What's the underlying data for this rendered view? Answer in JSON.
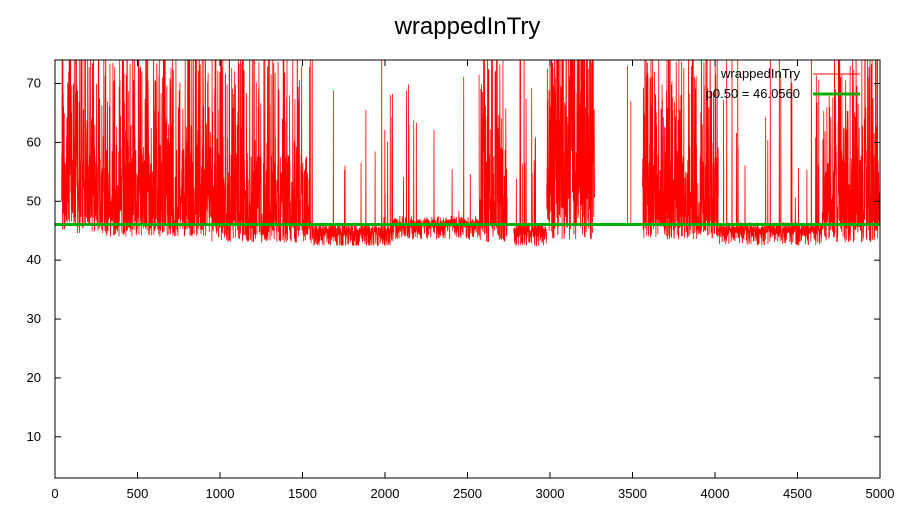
{
  "chart_data": {
    "type": "line",
    "title": "wrappedInTry",
    "xlabel": "",
    "ylabel": "",
    "xlim": [
      0,
      5000
    ],
    "ylim": [
      3,
      74
    ],
    "x_ticks": [
      0,
      500,
      1000,
      1500,
      2000,
      2500,
      3000,
      3500,
      4000,
      4500,
      5000
    ],
    "y_ticks": [
      10,
      20,
      30,
      40,
      50,
      60,
      70
    ],
    "grid": false,
    "legend_position": "top-right",
    "series": [
      {
        "name": "wrappedInTry",
        "color": "#ff0000",
        "n_points": 5000,
        "segments": [
          {
            "x_range": [
              40,
              300
            ],
            "baseline": 46.5,
            "band_top": 58,
            "spike_prob": 0.3
          },
          {
            "x_range": [
              300,
              950
            ],
            "baseline": 46.0,
            "band_top": 60,
            "spike_prob": 0.2
          },
          {
            "x_range": [
              950,
              1550
            ],
            "baseline": 45.0,
            "band_top": 58,
            "spike_prob": 0.15
          },
          {
            "x_range": [
              1550,
              2050
            ],
            "baseline": 44.0,
            "band_top": 46,
            "spike_prob": 0.03
          },
          {
            "x_range": [
              2050,
              2570
            ],
            "baseline": 45.5,
            "band_top": 47,
            "spike_prob": 0.02
          },
          {
            "x_range": [
              2570,
              2740
            ],
            "baseline": 45.0,
            "band_top": 59,
            "spike_prob": 0.25
          },
          {
            "x_range": [
              2780,
              2980
            ],
            "baseline": 44.0,
            "band_top": 46,
            "spike_prob": 0.05
          },
          {
            "x_range": [
              2980,
              3270
            ],
            "baseline": 45.5,
            "band_top": 59,
            "spike_prob": 0.4
          },
          {
            "x_range": [
              3560,
              4020
            ],
            "baseline": 45.5,
            "band_top": 60,
            "spike_prob": 0.2
          },
          {
            "x_range": [
              4020,
              4650
            ],
            "baseline": 44.5,
            "band_top": 46,
            "spike_prob": 0.03
          },
          {
            "x_range": [
              4650,
              5000
            ],
            "baseline": 45.0,
            "band_top": 58,
            "spike_prob": 0.2
          }
        ],
        "y_min_observed": 42.5,
        "y_max_observed": 74
      },
      {
        "name": "p0.50 = 46.0560",
        "color": "#00b000",
        "type": "hline",
        "y": 46.056
      }
    ]
  }
}
